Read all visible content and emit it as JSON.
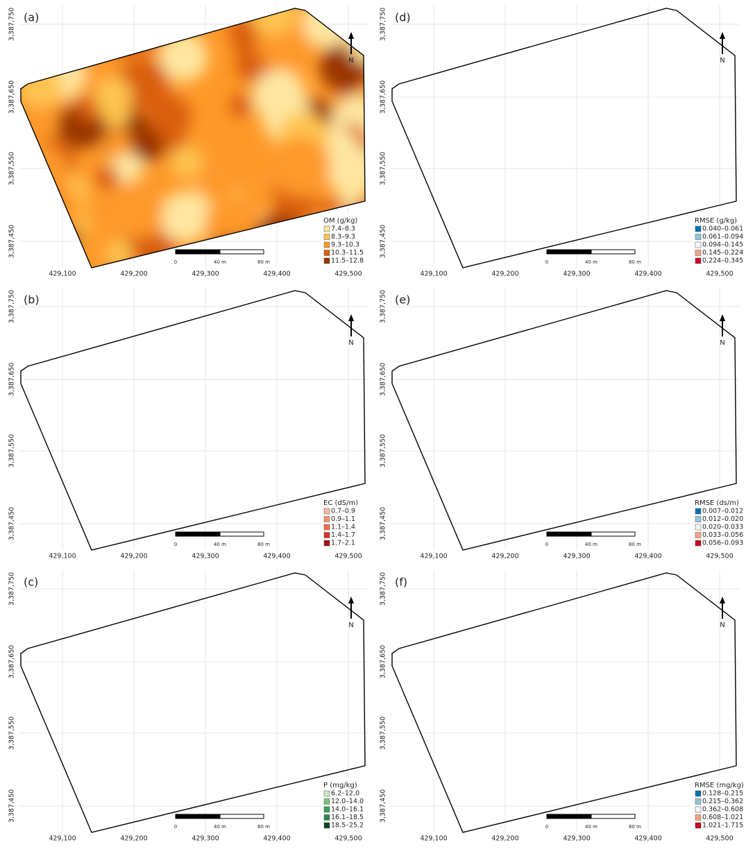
{
  "panels": [
    {
      "label": "(a)",
      "legend_title": "OM (g/kg)",
      "legend": [
        {
          "label": "7.4–8.3",
          "color": "#fee6a0"
        },
        {
          "label": "8.3–9.3",
          "color": "#fec44f"
        },
        {
          "label": "9.3–10.3",
          "color": "#fe9929"
        },
        {
          "label": "10.3–11.5",
          "color": "#d95f0e"
        },
        {
          "label": "11.5–12.8",
          "color": "#993404"
        }
      ]
    },
    {
      "label": "(d)",
      "legend_title": "RMSE (g/kg)",
      "legend": [
        {
          "label": "0.040–0.061",
          "color": "#0571b0"
        },
        {
          "label": "0.061–0.094",
          "color": "#92c5de"
        },
        {
          "label": "0.094–0.145",
          "color": "#f7f7f7"
        },
        {
          "label": "0.145–0.224",
          "color": "#f4a582"
        },
        {
          "label": "0.224–0.345",
          "color": "#ca0020"
        }
      ]
    },
    {
      "label": "(b)",
      "legend_title": "EC (dS/m)",
      "legend": [
        {
          "label": "0.7–0.9",
          "color": "#fcbba1"
        },
        {
          "label": "0.9–1.1",
          "color": "#fc9272"
        },
        {
          "label": "1.1–1.4",
          "color": "#fb6a4a"
        },
        {
          "label": "1.4–1.7",
          "color": "#de2d26"
        },
        {
          "label": "1.7–2.1",
          "color": "#a50f15"
        }
      ]
    },
    {
      "label": "(e)",
      "legend_title": "RMSE (ds/m)",
      "legend": [
        {
          "label": "0.007–0.012",
          "color": "#0571b0"
        },
        {
          "label": "0.012–0.020",
          "color": "#92c5de"
        },
        {
          "label": "0.020–0.033",
          "color": "#f7f7f7"
        },
        {
          "label": "0.033–0.056",
          "color": "#f4a582"
        },
        {
          "label": "0.056–0.093",
          "color": "#ca0020"
        }
      ]
    },
    {
      "label": "(c)",
      "legend_title": "P (mg/kg)",
      "legend": [
        {
          "label": "6.2–12.0",
          "color": "#c7e9c0"
        },
        {
          "label": "12.0–14.0",
          "color": "#74c476"
        },
        {
          "label": "14.0–16.1",
          "color": "#31a354"
        },
        {
          "label": "16.1–18.5",
          "color": "#238b45"
        },
        {
          "label": "18.5–25.2",
          "color": "#00441b"
        }
      ]
    },
    {
      "label": "(f)",
      "legend_title": "RMSE (mg/kg)",
      "legend": [
        {
          "label": "0.128–0.215",
          "color": "#0571b0"
        },
        {
          "label": "0.215–0.362",
          "color": "#92c5de"
        },
        {
          "label": "0.362–0.608",
          "color": "#f7f7f7"
        },
        {
          "label": "0.608–1.021",
          "color": "#f4a582"
        },
        {
          "label": "1.021–1.715",
          "color": "#ca0020"
        }
      ]
    }
  ],
  "x_ticks": [
    "429,100",
    "429,200",
    "429,300",
    "429,400",
    "429,500"
  ],
  "y_ticks": [
    "3,387,750",
    "3,387,650",
    "3,387,550",
    "3,387,450"
  ],
  "scale_bar": [
    "0",
    "40 m",
    "80 m"
  ],
  "north": "N"
}
